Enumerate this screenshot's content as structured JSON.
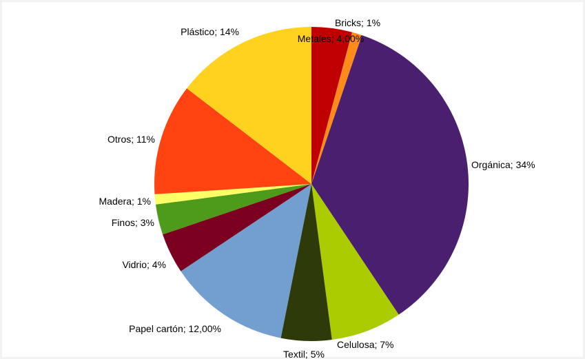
{
  "chart_data": {
    "type": "pie",
    "start_angle_deg": 0,
    "direction": "clockwise",
    "slices": [
      {
        "label": "Metales; 4,00%",
        "value": 4.0,
        "color": "#c00000"
      },
      {
        "label": "Bricks; 1%",
        "value": 1.0,
        "color": "#ff8c1a"
      },
      {
        "label": "Orgánica; 34%",
        "value": 34.0,
        "color": "#4b1f6f"
      },
      {
        "label": "Celulosa; 7%",
        "value": 7.0,
        "color": "#aacc00"
      },
      {
        "label": "Textil; 5%",
        "value": 5.0,
        "color": "#2e3a0a"
      },
      {
        "label": "Papel cartón; 12,00%",
        "value": 12.0,
        "color": "#729fcf"
      },
      {
        "label": "Vidrio; 4%",
        "value": 4.0,
        "color": "#7b0020"
      },
      {
        "label": "Finos; 3%",
        "value": 3.0,
        "color": "#4e9a1a"
      },
      {
        "label": "Madera; 1%",
        "value": 1.0,
        "color": "#ffff66"
      },
      {
        "label": "Otros; 11%",
        "value": 11.0,
        "color": "#ff4411"
      },
      {
        "label": "Plástico; 14%",
        "value": 14.0,
        "color": "#ffd21f"
      }
    ]
  }
}
